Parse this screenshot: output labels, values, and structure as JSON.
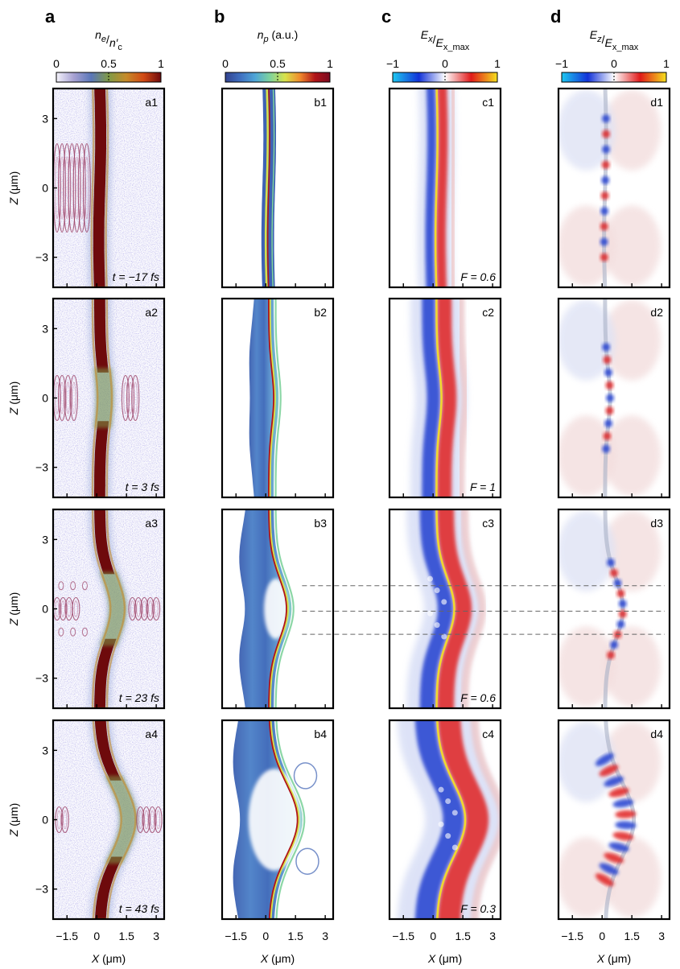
{
  "columns": [
    {
      "letter": "a",
      "colorbar": {
        "label_main": "n",
        "label_sub": "e",
        "label_den_main": "n′",
        "label_den_sub": "c",
        "ticks": [
          "0",
          "0.5",
          "1"
        ],
        "scheme": "density"
      },
      "panels": [
        {
          "id": "a1",
          "note": "t = −17 fs",
          "stage": 1
        },
        {
          "id": "a2",
          "note": "t = 3 fs",
          "stage": 2
        },
        {
          "id": "a3",
          "note": "t = 23 fs",
          "stage": 3
        },
        {
          "id": "a4",
          "note": "t = 43 fs",
          "stage": 4
        }
      ]
    },
    {
      "letter": "b",
      "colorbar": {
        "label_main": "n",
        "label_sub": "p",
        "label_suffix": " (a.u.)",
        "ticks": [
          "0",
          "0.5",
          "1"
        ],
        "scheme": "jet"
      },
      "panels": [
        {
          "id": "b1",
          "note": "",
          "stage": 1
        },
        {
          "id": "b2",
          "note": "",
          "stage": 2
        },
        {
          "id": "b3",
          "note": "",
          "stage": 3
        },
        {
          "id": "b4",
          "note": "",
          "stage": 4
        }
      ]
    },
    {
      "letter": "c",
      "colorbar": {
        "label_main": "E",
        "label_sub": "x",
        "label_den_main": "E",
        "label_den_sub": "x_max",
        "ticks": [
          "−1",
          "0",
          "1"
        ],
        "scheme": "diverging"
      },
      "panels": [
        {
          "id": "c1",
          "note": "F = 0.6",
          "stage": 1
        },
        {
          "id": "c2",
          "note": "F = 1",
          "stage": 2
        },
        {
          "id": "c3",
          "note": "F = 0.6",
          "stage": 3
        },
        {
          "id": "c4",
          "note": "F = 0.3",
          "stage": 4
        }
      ]
    },
    {
      "letter": "d",
      "colorbar": {
        "label_main": "E",
        "label_sub": "z",
        "label_den_main": "E",
        "label_den_sub": "x_max",
        "ticks": [
          "−1",
          "0",
          "1"
        ],
        "scheme": "diverging"
      },
      "panels": [
        {
          "id": "d1",
          "note": "",
          "stage": 1
        },
        {
          "id": "d2",
          "note": "",
          "stage": 2
        },
        {
          "id": "d3",
          "note": "",
          "stage": 3
        },
        {
          "id": "d4",
          "note": "",
          "stage": 4
        }
      ]
    }
  ],
  "axes": {
    "x_label_main": "X",
    "x_label_unit": " (μm)",
    "y_label_main": "Z",
    "y_label_unit": " (μm)",
    "x_ticks": [
      "−1.5",
      "0",
      "1.5",
      "3"
    ],
    "y_ticks": [
      "3",
      "0",
      "−3"
    ],
    "x_tick_values": [
      -1.5,
      0,
      1.5,
      3
    ],
    "y_tick_values": [
      3,
      0,
      -3
    ],
    "x_range": [
      -2.2,
      3.4
    ],
    "z_range": [
      -4.3,
      4.3
    ]
  },
  "reference_lines_z": [
    1.0,
    -0.1,
    -1.1
  ],
  "colors": {
    "density": [
      "#f4f3fb",
      "#a7a1d2",
      "#5a76b8",
      "#7f9a46",
      "#c58b2a",
      "#d24a14",
      "#6e0a0c"
    ],
    "jet": [
      "#33438f",
      "#3f6fc0",
      "#4fa6d7",
      "#7fd39c",
      "#d8e24a",
      "#f08a2c",
      "#b01418",
      "#7a0a20"
    ],
    "diverging": [
      "#1ec8f0",
      "#1232d8",
      "#ffffff",
      "#e01a1a",
      "#f5e11e"
    ],
    "field_blue": "#2040d0",
    "field_red": "#e02020",
    "foil": "#6e0a0c"
  }
}
